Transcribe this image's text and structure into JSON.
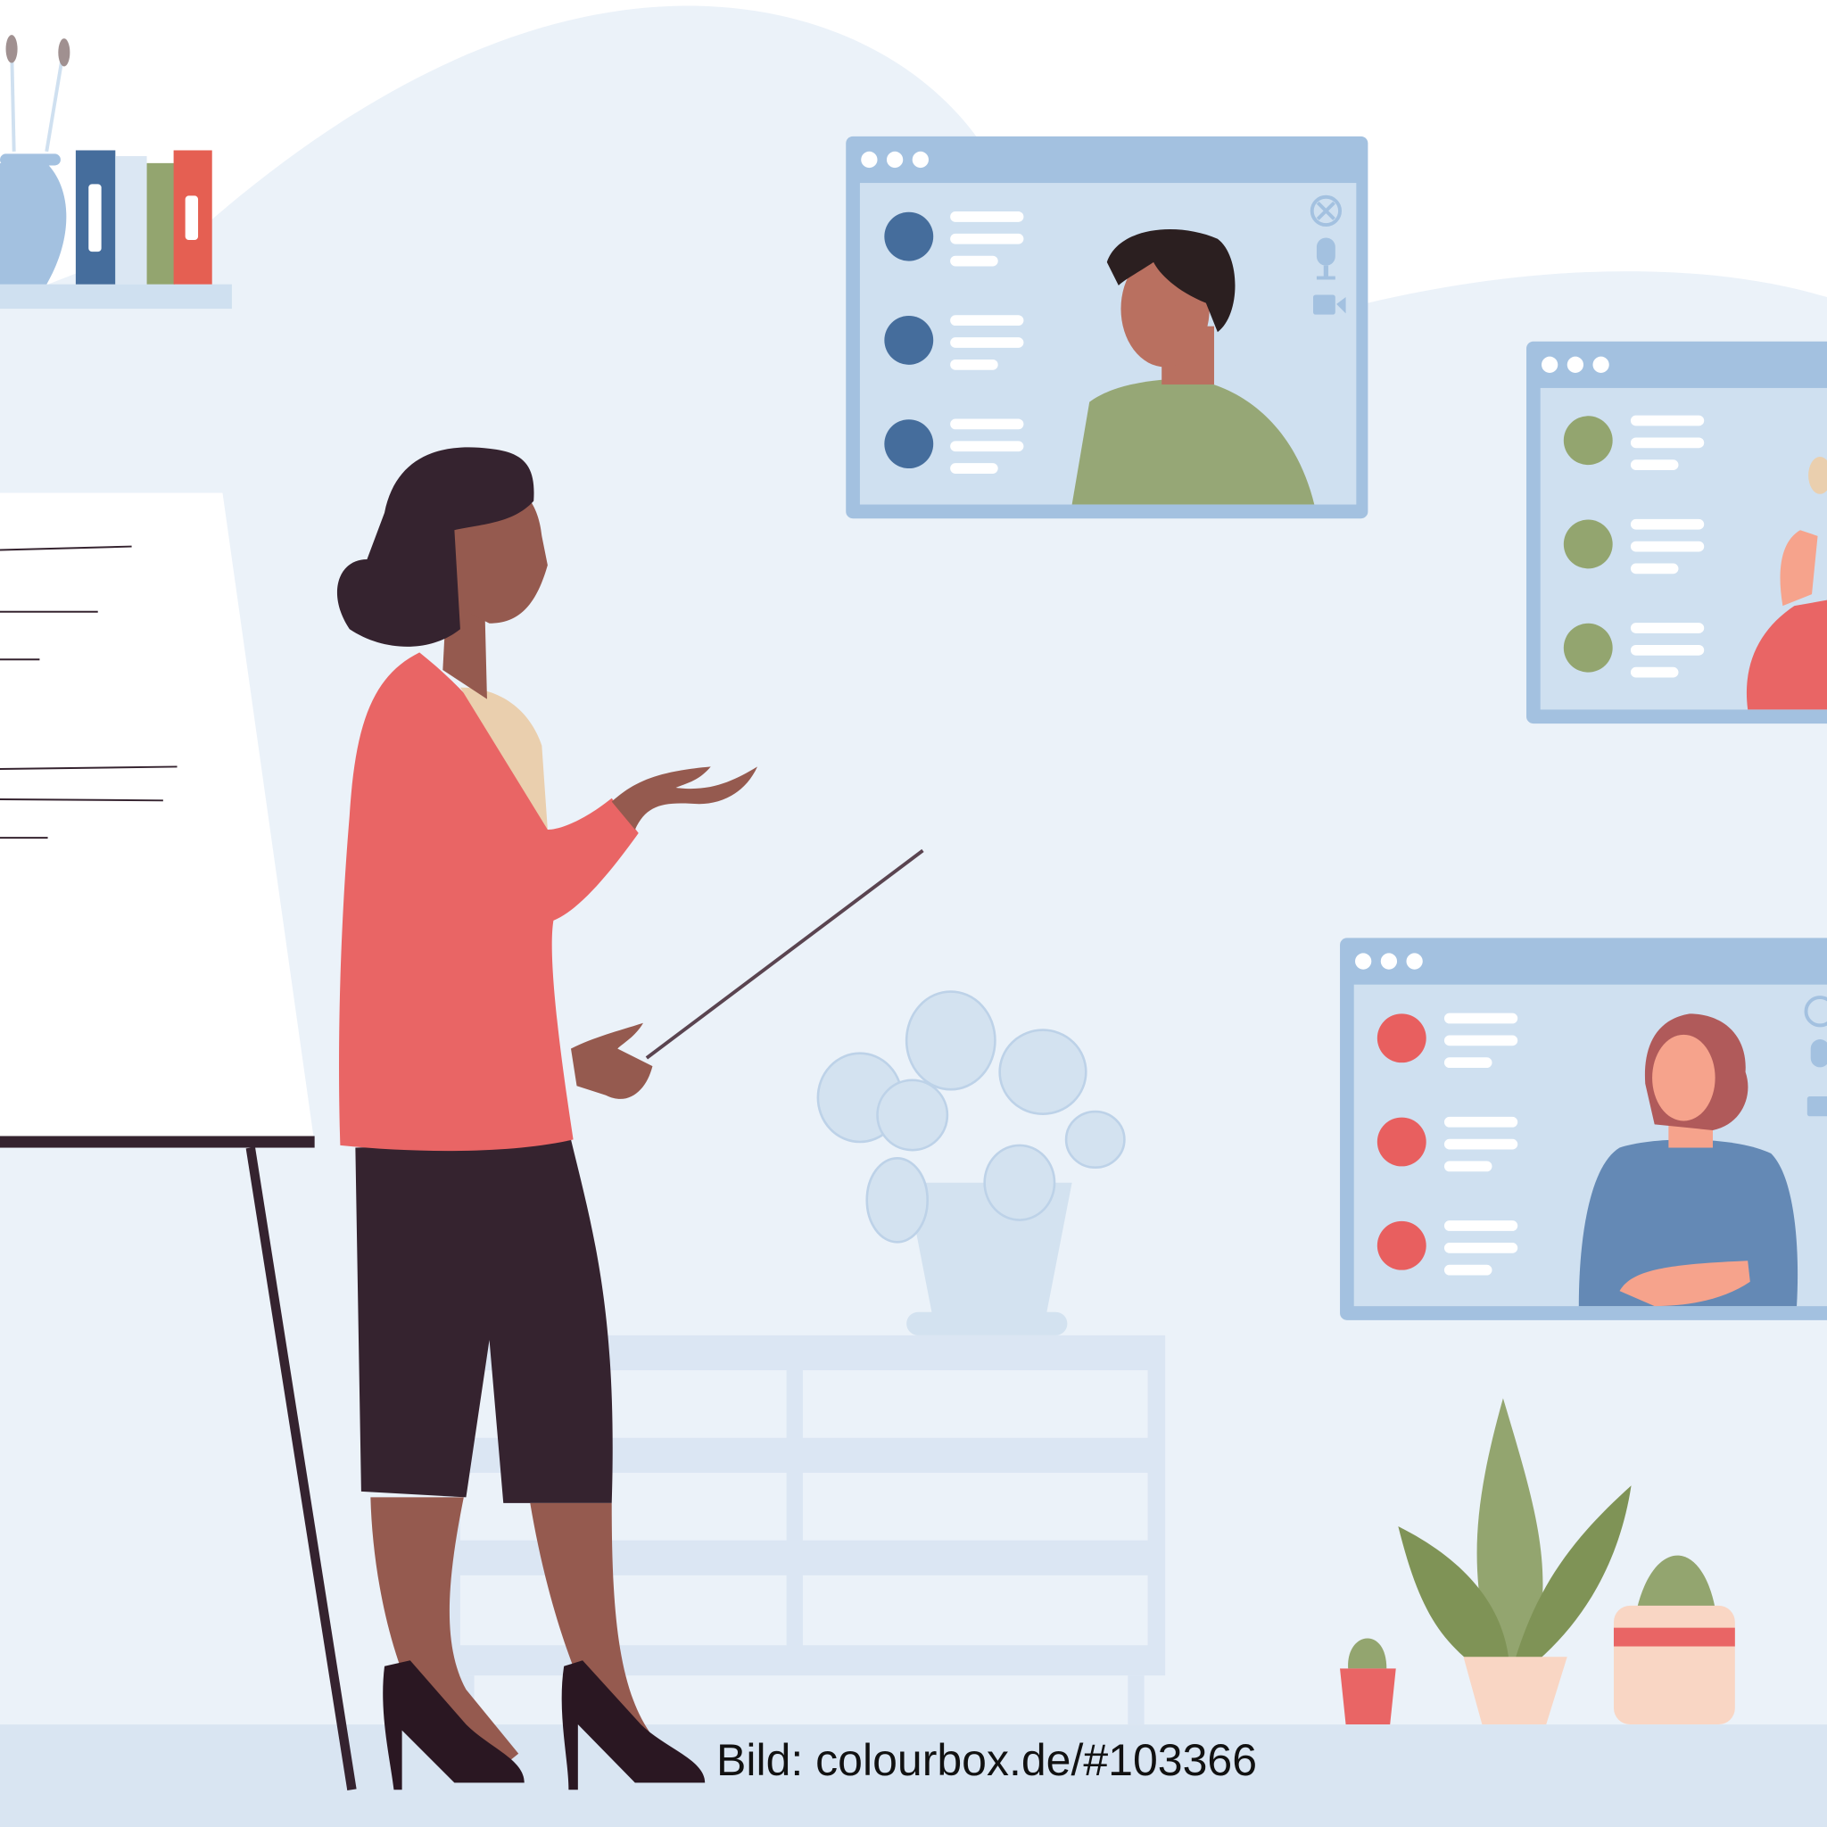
{
  "caption": "Bild: colourbox.de/#103366",
  "colors": {
    "background": "#ffffff",
    "backdrop": "#ebf2f9",
    "floor": "#d9e5f2",
    "window_frame": "#a3c1e0",
    "window_body": "#cfe0f0",
    "jacket": "#e96565",
    "skin": "#955a4f",
    "hair": "#35232f",
    "avatar_blue": "#456d9c",
    "avatar_green": "#93a56f",
    "avatar_red": "#e85f5f"
  },
  "video_windows": [
    {
      "avatar_color": "#456d9c",
      "participant": "man-green-shirt"
    },
    {
      "avatar_color": "#93a56f",
      "participant": "person-red-top"
    },
    {
      "avatar_color": "#e85f5f",
      "participant": "woman-blue-sweater"
    }
  ],
  "icons": [
    "close-icon",
    "microphone-icon",
    "video-camera-icon"
  ]
}
